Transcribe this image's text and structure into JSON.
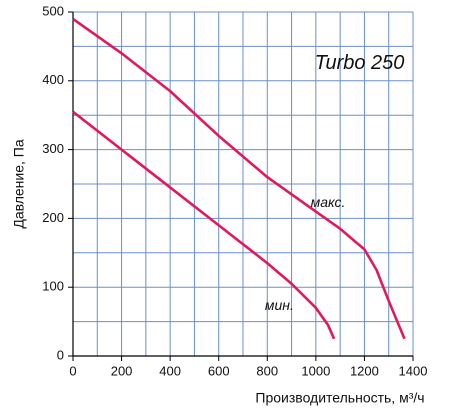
{
  "chart_data": {
    "type": "line",
    "annotations": [
      {
        "text": "Turbo 250",
        "x": 1180,
        "y": 425
      },
      {
        "text": "макс.",
        "x": 1050,
        "y": 222
      },
      {
        "text": "мин.",
        "x": 850,
        "y": 72
      }
    ],
    "x_label": "Производительность, м³/ч",
    "y_label": "Давление, Па",
    "series": [
      {
        "name": "макс.",
        "color": "#e0195c",
        "x": [
          0,
          200,
          400,
          600,
          800,
          1000,
          1100,
          1200,
          1250,
          1300,
          1365
        ],
        "values": [
          490,
          440,
          385,
          320,
          260,
          210,
          185,
          155,
          125,
          80,
          25
        ]
      },
      {
        "name": "мин.",
        "color": "#e0195c",
        "x": [
          0,
          200,
          400,
          600,
          800,
          900,
          1000,
          1050,
          1075
        ],
        "values": [
          355,
          300,
          245,
          190,
          135,
          105,
          70,
          45,
          25
        ]
      }
    ],
    "xlim": [
      0,
      1400
    ],
    "ylim": [
      0,
      500
    ],
    "xticks": [
      0,
      200,
      400,
      600,
      800,
      1000,
      1200,
      1400
    ],
    "yticks": [
      0,
      100,
      200,
      300,
      400,
      500
    ],
    "grid": true,
    "grid_step": {
      "x": 100,
      "y": 50
    },
    "grid_color": "#6b8fc9"
  }
}
